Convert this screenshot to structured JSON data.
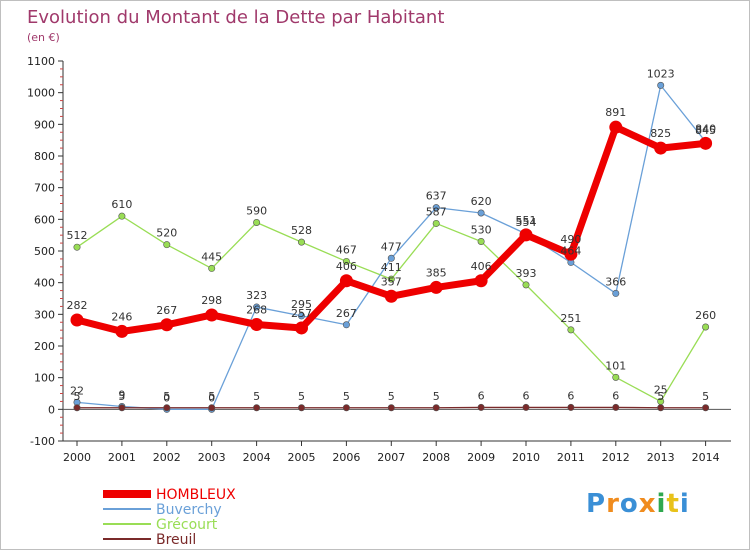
{
  "title": "Evolution du Montant de la Dette par Habitant",
  "subtitle": "(en €)",
  "logo": {
    "text": "Proxiti",
    "letter_colors": [
      "#3a8fd6",
      "#f08c1e",
      "#3a8fd6",
      "#f08c1e",
      "#2fa84f",
      "#e8c21a",
      "#3a8fd6"
    ]
  },
  "chart_data": {
    "type": "line",
    "x": [
      "2000",
      "2001",
      "2002",
      "2003",
      "2004",
      "2005",
      "2006",
      "2007",
      "2008",
      "2009",
      "2010",
      "2011",
      "2012",
      "2013",
      "2014"
    ],
    "ylim": [
      -100,
      1100
    ],
    "yticks": [
      -100,
      0,
      100,
      200,
      300,
      400,
      500,
      600,
      700,
      800,
      900,
      1000,
      1100
    ],
    "grid": false,
    "legend_position": "bottom-left",
    "series": [
      {
        "name": "Grécourt",
        "color": "#99dd55",
        "values": [
          512,
          610,
          520,
          445,
          590,
          528,
          467,
          411,
          587,
          530,
          393,
          251,
          101,
          25,
          260
        ]
      },
      {
        "name": "Buverchy",
        "color": "#6aa0d8",
        "values": [
          22,
          9,
          0,
          0,
          323,
          295,
          267,
          477,
          637,
          620,
          554,
          464,
          366,
          1023,
          845
        ]
      },
      {
        "name": "HOMBLEUX",
        "color": "#ee0000",
        "values": [
          282,
          246,
          267,
          298,
          268,
          257,
          406,
          357,
          385,
          406,
          551,
          490,
          891,
          825,
          840
        ]
      },
      {
        "name": "Breuil",
        "color": "#7a2a2a",
        "values": [
          5,
          5,
          5,
          5,
          5,
          5,
          5,
          5,
          5,
          6,
          6,
          6,
          6,
          5,
          5
        ]
      }
    ],
    "legend_order": [
      "HOMBLEUX",
      "Buverchy",
      "Grécourt",
      "Breuil"
    ]
  }
}
